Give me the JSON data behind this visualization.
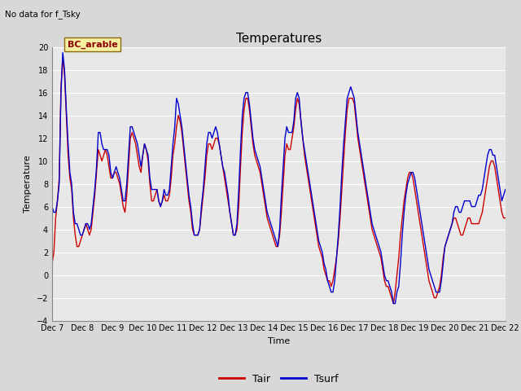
{
  "title": "Temperatures",
  "no_data_text": "No data for f_Tsky",
  "bc_label": "BC_arable",
  "ylabel": "Temperature",
  "xlabel": "Time",
  "legend_labels": [
    "Tair",
    "Tsurf"
  ],
  "tair_color": "#cc0000",
  "tsurf_color": "#0000cc",
  "ylim": [
    -4,
    20
  ],
  "yticks": [
    -4,
    -2,
    0,
    2,
    4,
    6,
    8,
    10,
    12,
    14,
    16,
    18,
    20
  ],
  "bg_color": "#d8d8d8",
  "plot_bg_color": "#e8e8e8",
  "x_tick_labels": [
    "Dec 7",
    "Dec 8",
    "Dec 9",
    "Dec 10",
    "Dec 11",
    "Dec 12",
    "Dec 13",
    "Dec 14",
    "Dec 15",
    "Dec 16",
    "Dec 17",
    "Dec 18",
    "Dec 19",
    "Dec 20",
    "Dec 21",
    "Dec 22"
  ],
  "tair": [
    1.0,
    2.0,
    5.0,
    6.5,
    8.5,
    16.5,
    19.0,
    17.5,
    14.0,
    10.5,
    8.5,
    7.5,
    5.0,
    3.5,
    2.5,
    2.5,
    3.0,
    3.5,
    4.0,
    4.5,
    4.0,
    3.5,
    4.0,
    5.5,
    7.0,
    9.0,
    11.0,
    10.5,
    10.0,
    10.5,
    11.0,
    10.5,
    9.5,
    8.5,
    8.5,
    9.0,
    9.0,
    8.5,
    8.0,
    7.0,
    6.0,
    5.5,
    7.0,
    9.5,
    12.0,
    12.5,
    12.0,
    11.5,
    10.5,
    9.5,
    9.0,
    10.5,
    11.5,
    11.0,
    10.0,
    8.0,
    6.5,
    6.5,
    7.0,
    7.5,
    6.5,
    6.0,
    6.5,
    7.0,
    6.5,
    6.5,
    7.0,
    8.5,
    10.5,
    11.5,
    13.0,
    14.0,
    13.5,
    12.5,
    11.0,
    9.5,
    8.0,
    6.5,
    5.5,
    4.0,
    3.5,
    3.5,
    3.5,
    4.0,
    5.5,
    7.0,
    8.5,
    10.5,
    11.5,
    11.5,
    11.0,
    11.5,
    12.0,
    12.0,
    11.5,
    10.5,
    9.5,
    8.5,
    7.5,
    6.5,
    5.5,
    4.5,
    3.5,
    3.5,
    4.0,
    6.0,
    9.5,
    12.5,
    14.5,
    15.5,
    15.5,
    14.5,
    13.0,
    11.5,
    10.5,
    10.0,
    9.5,
    9.0,
    8.0,
    7.0,
    6.0,
    5.0,
    4.5,
    4.0,
    3.5,
    3.0,
    2.5,
    2.5,
    3.5,
    5.5,
    8.0,
    10.5,
    11.5,
    11.0,
    11.0,
    12.0,
    13.0,
    14.5,
    15.5,
    15.0,
    13.5,
    12.0,
    10.5,
    9.5,
    8.5,
    7.5,
    6.5,
    5.5,
    4.5,
    3.5,
    2.5,
    2.0,
    1.5,
    0.5,
    0.0,
    -0.5,
    -0.5,
    -1.0,
    -0.5,
    0.5,
    1.5,
    3.0,
    5.0,
    7.5,
    10.0,
    12.5,
    14.5,
    15.5,
    15.5,
    15.5,
    15.0,
    13.5,
    12.0,
    11.0,
    10.0,
    9.0,
    8.0,
    7.0,
    6.0,
    5.0,
    4.0,
    3.5,
    3.0,
    2.5,
    2.0,
    1.5,
    0.5,
    -0.5,
    -1.0,
    -1.0,
    -1.5,
    -2.0,
    -2.5,
    -1.5,
    0.0,
    1.5,
    3.5,
    5.0,
    6.5,
    7.5,
    8.5,
    9.0,
    9.0,
    8.5,
    7.5,
    6.5,
    5.5,
    4.5,
    3.5,
    2.5,
    1.5,
    0.5,
    -0.5,
    -1.0,
    -1.5,
    -2.0,
    -2.0,
    -1.5,
    -1.0,
    0.0,
    1.5,
    2.5,
    3.0,
    3.5,
    4.0,
    4.5,
    5.0,
    5.0,
    4.5,
    4.0,
    3.5,
    3.5,
    4.0,
    4.5,
    5.0,
    5.0,
    4.5,
    4.5,
    4.5,
    4.5,
    4.5,
    5.0,
    5.5,
    6.5,
    7.5,
    8.5,
    9.5,
    10.0,
    10.0,
    9.5,
    8.5,
    7.5,
    6.5,
    5.5,
    5.0,
    5.0
  ],
  "tsurf": [
    6.0,
    5.5,
    5.5,
    6.5,
    8.0,
    16.0,
    19.5,
    18.0,
    14.5,
    11.5,
    9.0,
    8.0,
    5.5,
    4.5,
    4.5,
    4.0,
    3.5,
    3.5,
    4.0,
    4.5,
    4.5,
    4.0,
    4.5,
    6.0,
    7.5,
    9.5,
    12.5,
    12.5,
    11.5,
    11.0,
    11.0,
    11.0,
    10.5,
    9.0,
    8.5,
    9.0,
    9.5,
    9.0,
    8.5,
    7.5,
    6.5,
    6.5,
    8.0,
    10.5,
    13.0,
    13.0,
    12.5,
    12.0,
    11.5,
    10.5,
    9.5,
    10.5,
    11.5,
    11.0,
    10.5,
    8.5,
    7.5,
    7.5,
    7.5,
    7.5,
    6.5,
    6.0,
    6.5,
    7.5,
    7.0,
    7.0,
    7.5,
    9.5,
    11.5,
    13.0,
    15.5,
    15.0,
    14.0,
    13.0,
    11.5,
    10.0,
    8.5,
    7.0,
    6.0,
    4.5,
    3.5,
    3.5,
    3.5,
    4.0,
    6.0,
    7.5,
    9.5,
    11.5,
    12.5,
    12.5,
    12.0,
    12.5,
    13.0,
    12.5,
    11.5,
    10.5,
    9.5,
    9.0,
    8.0,
    7.0,
    5.5,
    4.5,
    3.5,
    3.5,
    4.5,
    7.5,
    11.0,
    14.0,
    15.5,
    16.0,
    16.0,
    15.0,
    13.5,
    12.0,
    11.0,
    10.5,
    10.0,
    9.5,
    8.5,
    7.5,
    6.5,
    5.5,
    5.0,
    4.5,
    4.0,
    3.5,
    3.0,
    2.5,
    4.0,
    7.0,
    9.5,
    12.0,
    13.0,
    12.5,
    12.5,
    12.5,
    13.5,
    15.5,
    16.0,
    15.5,
    13.5,
    12.0,
    11.0,
    10.0,
    9.0,
    8.0,
    7.0,
    6.0,
    5.0,
    4.0,
    3.0,
    2.5,
    2.0,
    1.0,
    0.5,
    -0.5,
    -1.0,
    -1.5,
    -1.5,
    -0.5,
    1.5,
    3.5,
    6.0,
    9.0,
    11.5,
    13.5,
    15.5,
    16.0,
    16.5,
    16.0,
    15.5,
    14.0,
    12.5,
    11.5,
    10.5,
    9.5,
    8.5,
    7.5,
    6.5,
    5.5,
    4.5,
    4.0,
    3.5,
    3.0,
    2.5,
    2.0,
    1.0,
    0.0,
    -0.5,
    -0.5,
    -1.0,
    -1.5,
    -2.5,
    -2.5,
    -1.5,
    -1.0,
    1.0,
    3.5,
    5.5,
    7.0,
    8.0,
    8.5,
    9.0,
    9.0,
    8.5,
    7.5,
    6.5,
    5.5,
    4.5,
    3.5,
    2.5,
    1.5,
    0.5,
    0.0,
    -0.5,
    -1.0,
    -1.5,
    -1.5,
    -1.5,
    -0.5,
    1.0,
    2.5,
    3.0,
    3.5,
    4.0,
    4.5,
    5.5,
    6.0,
    6.0,
    5.5,
    5.5,
    6.0,
    6.5,
    6.5,
    6.5,
    6.5,
    6.0,
    6.0,
    6.0,
    6.5,
    7.0,
    7.0,
    7.5,
    8.5,
    9.5,
    10.5,
    11.0,
    11.0,
    10.5,
    10.5,
    9.5,
    8.5,
    7.5,
    6.5,
    7.0,
    7.5
  ]
}
